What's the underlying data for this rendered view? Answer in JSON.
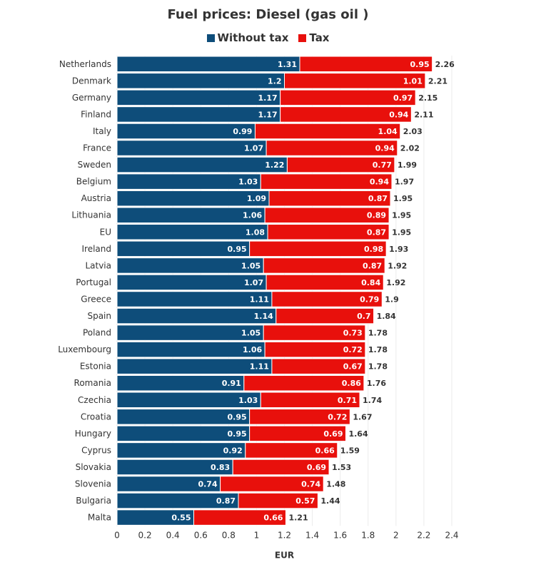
{
  "chart_data": {
    "type": "bar",
    "orientation": "horizontal",
    "stacked": true,
    "title": "Fuel prices: Diesel (gas oil )",
    "xlabel": "EUR",
    "xlim": [
      0,
      2.4
    ],
    "xticks": [
      "0",
      "0.2",
      "0.4",
      "0.6",
      "0.8",
      "1",
      "1.2",
      "1.4",
      "1.6",
      "1.8",
      "2",
      "2.2",
      "2.4"
    ],
    "grid": true,
    "legend_position": "top",
    "categories": [
      "Netherlands",
      "Denmark",
      "Germany",
      "Finland",
      "Italy",
      "France",
      "Sweden",
      "Belgium",
      "Austria",
      "Lithuania",
      "EU",
      "Ireland",
      "Latvia",
      "Portugal",
      "Greece",
      "Spain",
      "Poland",
      "Luxembourg",
      "Estonia",
      "Romania",
      "Czechia",
      "Croatia",
      "Hungary",
      "Cyprus",
      "Slovakia",
      "Slovenia",
      "Bulgaria",
      "Malta"
    ],
    "series": [
      {
        "name": "Without tax",
        "color": "#0e4d7a",
        "values": [
          1.31,
          1.2,
          1.17,
          1.17,
          0.99,
          1.07,
          1.22,
          1.03,
          1.09,
          1.06,
          1.08,
          0.95,
          1.05,
          1.07,
          1.11,
          1.14,
          1.05,
          1.06,
          1.11,
          0.91,
          1.03,
          0.95,
          0.95,
          0.92,
          0.83,
          0.74,
          0.87,
          0.55
        ]
      },
      {
        "name": "Tax",
        "color": "#e8100c",
        "values": [
          0.95,
          1.01,
          0.97,
          0.94,
          1.04,
          0.94,
          0.77,
          0.94,
          0.87,
          0.89,
          0.87,
          0.98,
          0.87,
          0.84,
          0.79,
          0.7,
          0.73,
          0.72,
          0.67,
          0.86,
          0.71,
          0.72,
          0.69,
          0.66,
          0.69,
          0.74,
          0.57,
          0.66
        ]
      }
    ],
    "totals": [
      "2.26",
      "2.21",
      "2.15",
      "2.11",
      "2.03",
      "2.02",
      "1.99",
      "1.97",
      "1.95",
      "1.95",
      "1.95",
      "1.93",
      "1.92",
      "1.92",
      "1.9",
      "1.84",
      "1.78",
      "1.78",
      "1.78",
      "1.76",
      "1.74",
      "1.67",
      "1.64",
      "1.59",
      "1.53",
      "1.48",
      "1.44",
      "1.21"
    ]
  }
}
